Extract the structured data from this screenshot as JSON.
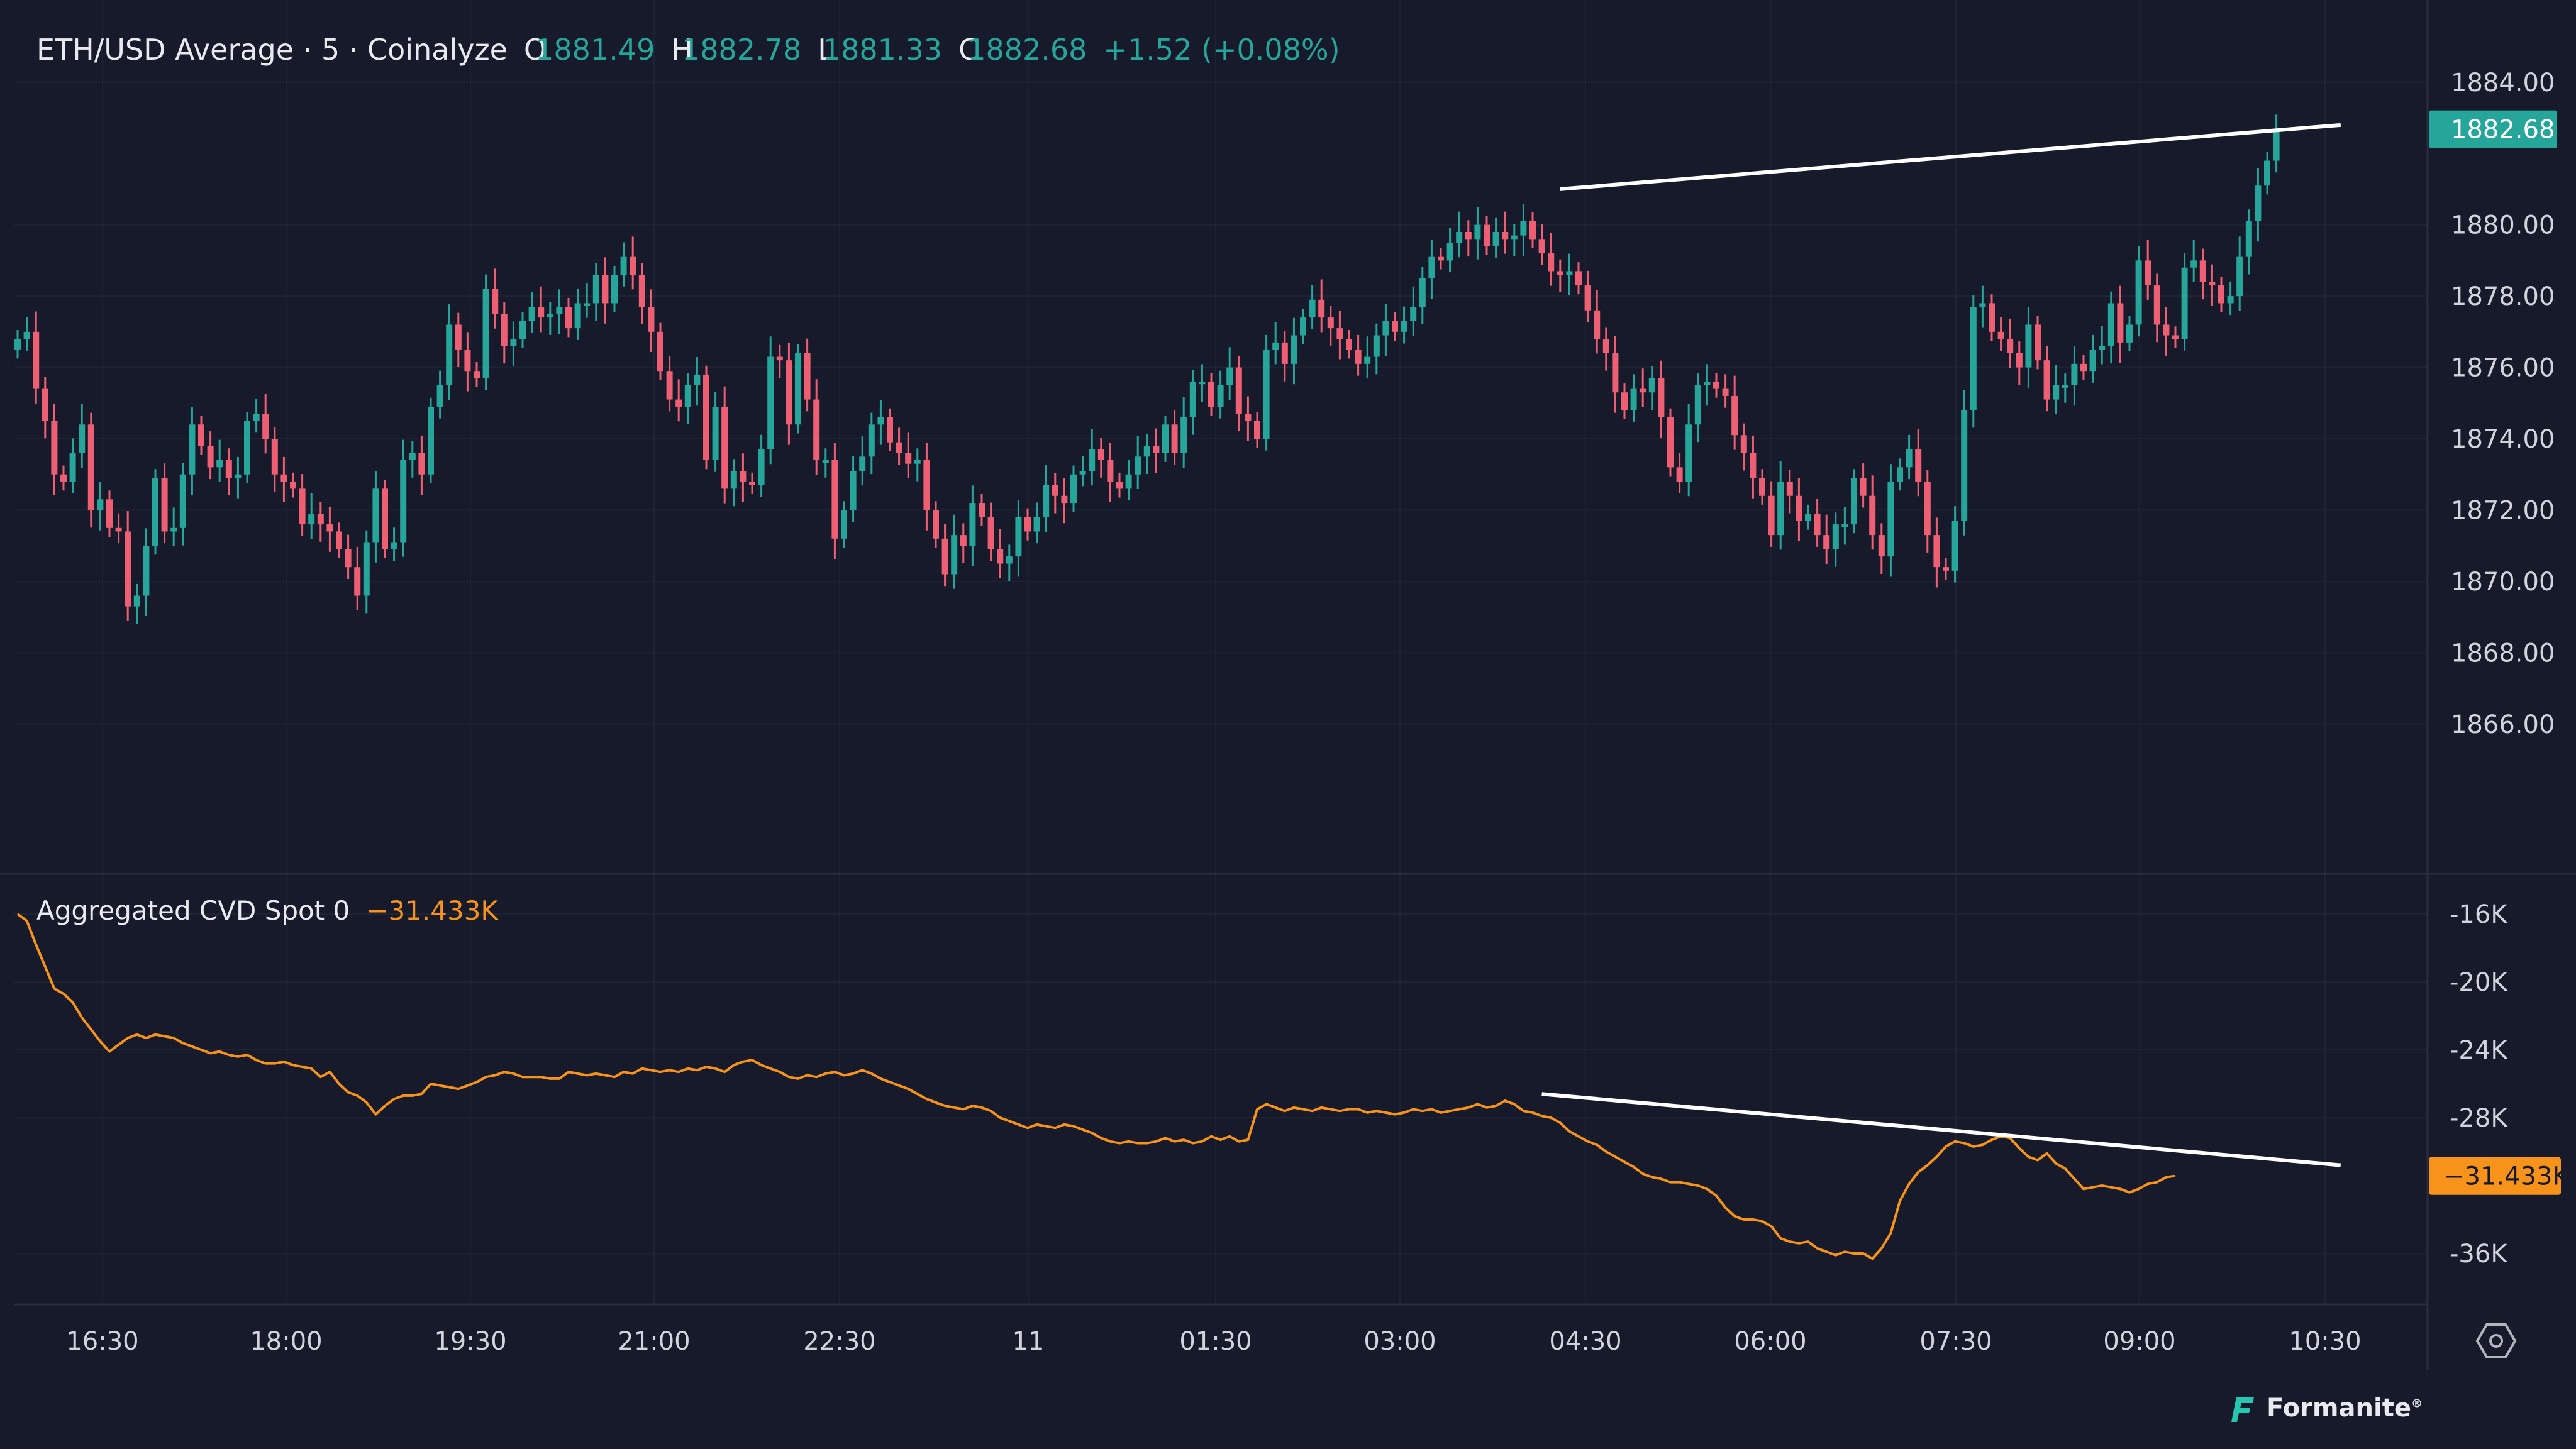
{
  "legend": {
    "symbol": "ETH/USD Average · 5 · Coinalyze",
    "o_label": "O",
    "o_value": "1881.49",
    "h_label": "H",
    "h_value": "1882.78",
    "l_label": "L",
    "l_value": "1881.33",
    "c_label": "C",
    "c_value": "1882.68",
    "change": "+1.52 (+0.08%)"
  },
  "cvd_legend": {
    "name": "Aggregated CVD Spot 0",
    "value": "−31.433K"
  },
  "watermark": {
    "brand": "Formanite",
    "mark": "®"
  },
  "colors": {
    "background": "#161a2a",
    "up": "#26a69a",
    "down": "#ef5f74",
    "cvd": "#f7931a",
    "trendline": "#ffffff",
    "grid": "#1f2435",
    "axis_text": "#d1d4dc"
  },
  "chart_data": [
    {
      "type": "candlestick",
      "series_name": "ETH/USD Average",
      "interval": "5",
      "x_tick_labels": [
        "16:30",
        "18:00",
        "19:30",
        "21:00",
        "22:30",
        "11",
        "01:30",
        "03:00",
        "04:30",
        "06:00",
        "07:30",
        "09:00",
        "10:30"
      ],
      "y_tick_labels": [
        "1884.00",
        "1880.00",
        "1878.00",
        "1876.00",
        "1874.00",
        "1872.00",
        "1870.00",
        "1868.00",
        "1866.00"
      ],
      "y_ticks": [
        1884,
        1880,
        1878,
        1876,
        1874,
        1872,
        1870,
        1868,
        1866
      ],
      "ylim": [
        1861.8,
        1885.6
      ],
      "last_price_label": "1882.68",
      "last_price": 1882.68,
      "closes": [
        1876.8,
        1877.0,
        1875.4,
        1874.5,
        1873.0,
        1872.8,
        1873.6,
        1874.4,
        1872.0,
        1872.3,
        1871.5,
        1871.4,
        1869.3,
        1869.6,
        1871.0,
        1872.9,
        1871.4,
        1871.5,
        1873.0,
        1874.4,
        1873.8,
        1873.2,
        1873.4,
        1872.9,
        1873.0,
        1874.5,
        1874.7,
        1874.0,
        1873.0,
        1872.8,
        1872.6,
        1871.6,
        1871.9,
        1871.6,
        1871.4,
        1870.9,
        1870.4,
        1869.6,
        1871.1,
        1872.6,
        1870.9,
        1871.1,
        1873.4,
        1873.6,
        1873.0,
        1874.9,
        1875.5,
        1877.2,
        1876.5,
        1875.9,
        1875.7,
        1878.2,
        1877.5,
        1876.6,
        1876.8,
        1877.3,
        1877.7,
        1877.4,
        1877.5,
        1877.7,
        1877.1,
        1877.8,
        1877.8,
        1878.6,
        1877.8,
        1878.6,
        1879.1,
        1878.6,
        1877.7,
        1877.0,
        1875.9,
        1875.1,
        1874.9,
        1875.5,
        1875.8,
        1873.4,
        1874.9,
        1872.6,
        1873.1,
        1872.8,
        1872.7,
        1873.7,
        1876.3,
        1876.2,
        1874.4,
        1876.4,
        1875.1,
        1873.4,
        1873.4,
        1871.2,
        1872.0,
        1873.1,
        1873.5,
        1874.4,
        1874.6,
        1873.9,
        1873.6,
        1873.3,
        1873.4,
        1872.0,
        1871.2,
        1870.2,
        1871.3,
        1871.0,
        1872.2,
        1871.8,
        1870.9,
        1870.5,
        1870.7,
        1871.8,
        1871.4,
        1871.8,
        1872.7,
        1872.4,
        1872.2,
        1873.0,
        1873.1,
        1873.7,
        1873.4,
        1872.8,
        1872.6,
        1873.0,
        1873.5,
        1873.8,
        1873.6,
        1874.4,
        1873.6,
        1874.6,
        1875.6,
        1875.6,
        1874.9,
        1875.5,
        1876.0,
        1874.7,
        1874.5,
        1874.0,
        1876.5,
        1876.7,
        1876.1,
        1876.9,
        1877.4,
        1877.9,
        1877.4,
        1877.1,
        1876.8,
        1876.5,
        1876.1,
        1876.3,
        1876.9,
        1877.3,
        1877.0,
        1877.3,
        1877.7,
        1878.5,
        1879.1,
        1879.0,
        1879.5,
        1879.8,
        1879.6,
        1880.0,
        1879.4,
        1879.8,
        1879.6,
        1879.7,
        1880.1,
        1879.6,
        1879.2,
        1878.7,
        1878.6,
        1878.7,
        1878.3,
        1877.6,
        1876.8,
        1876.4,
        1875.3,
        1874.8,
        1875.4,
        1875.3,
        1875.7,
        1874.6,
        1873.2,
        1872.8,
        1874.4,
        1875.5,
        1875.6,
        1875.4,
        1875.2,
        1874.1,
        1873.6,
        1872.9,
        1872.4,
        1871.3,
        1872.8,
        1872.4,
        1871.7,
        1871.9,
        1871.3,
        1870.9,
        1871.6,
        1871.6,
        1872.9,
        1872.4,
        1871.3,
        1870.7,
        1872.8,
        1873.2,
        1873.7,
        1872.8,
        1871.3,
        1870.4,
        1870.3,
        1871.7,
        1874.8,
        1877.7,
        1877.8,
        1877.0,
        1876.8,
        1876.4,
        1876.0,
        1877.2,
        1876.2,
        1875.1,
        1875.5,
        1875.5,
        1876.1,
        1875.9,
        1876.5,
        1876.6,
        1877.8,
        1876.7,
        1877.2,
        1879.0,
        1878.3,
        1877.2,
        1876.9,
        1876.8,
        1878.8,
        1879.0,
        1878.4,
        1878.3,
        1877.8,
        1878.0,
        1879.1,
        1880.1,
        1881.1,
        1881.8,
        1882.68
      ]
    },
    {
      "type": "line",
      "series_name": "Aggregated CVD Spot 0",
      "y_tick_labels": [
        "-16K",
        "-20K",
        "-24K",
        "-28K",
        "-36K"
      ],
      "y_ticks": [
        -16,
        -20,
        -24,
        -28,
        -36
      ],
      "ylim": [
        -39,
        -14
      ],
      "unit": "K",
      "last_value_label": "−31.433K",
      "last_value": -31.433,
      "values": [
        -16.0,
        -16.4,
        -17.8,
        -19.1,
        -20.4,
        -20.7,
        -21.2,
        -22.1,
        -22.8,
        -23.5,
        -24.1,
        -23.7,
        -23.3,
        -23.1,
        -23.3,
        -23.1,
        -23.2,
        -23.3,
        -23.6,
        -23.8,
        -24.0,
        -24.2,
        -24.1,
        -24.3,
        -24.4,
        -24.3,
        -24.6,
        -24.8,
        -24.8,
        -24.7,
        -24.9,
        -25.0,
        -25.1,
        -25.6,
        -25.3,
        -26.0,
        -26.5,
        -26.7,
        -27.1,
        -27.8,
        -27.3,
        -26.9,
        -26.7,
        -26.7,
        -26.6,
        -26.0,
        -26.1,
        -26.2,
        -26.3,
        -26.1,
        -25.9,
        -25.6,
        -25.5,
        -25.3,
        -25.4,
        -25.6,
        -25.6,
        -25.6,
        -25.7,
        -25.7,
        -25.3,
        -25.4,
        -25.5,
        -25.4,
        -25.5,
        -25.6,
        -25.3,
        -25.4,
        -25.1,
        -25.2,
        -25.3,
        -25.2,
        -25.3,
        -25.1,
        -25.2,
        -25.0,
        -25.1,
        -25.3,
        -24.9,
        -24.7,
        -24.6,
        -24.9,
        -25.1,
        -25.3,
        -25.6,
        -25.7,
        -25.5,
        -25.6,
        -25.4,
        -25.3,
        -25.5,
        -25.4,
        -25.2,
        -25.4,
        -25.7,
        -25.9,
        -26.1,
        -26.3,
        -26.6,
        -26.9,
        -27.1,
        -27.3,
        -27.4,
        -27.5,
        -27.3,
        -27.4,
        -27.6,
        -28.0,
        -28.2,
        -28.4,
        -28.6,
        -28.4,
        -28.5,
        -28.6,
        -28.4,
        -28.5,
        -28.7,
        -28.9,
        -29.2,
        -29.4,
        -29.5,
        -29.4,
        -29.5,
        -29.5,
        -29.4,
        -29.2,
        -29.4,
        -29.3,
        -29.5,
        -29.4,
        -29.1,
        -29.3,
        -29.1,
        -29.4,
        -29.3,
        -27.5,
        -27.2,
        -27.4,
        -27.6,
        -27.4,
        -27.5,
        -27.6,
        -27.4,
        -27.5,
        -27.6,
        -27.5,
        -27.5,
        -27.7,
        -27.6,
        -27.7,
        -27.8,
        -27.7,
        -27.5,
        -27.6,
        -27.5,
        -27.7,
        -27.6,
        -27.5,
        -27.4,
        -27.2,
        -27.4,
        -27.3,
        -27.0,
        -27.2,
        -27.6,
        -27.7,
        -27.9,
        -28.0,
        -28.3,
        -28.8,
        -29.1,
        -29.4,
        -29.6,
        -30.0,
        -30.3,
        -30.6,
        -30.9,
        -31.3,
        -31.5,
        -31.6,
        -31.8,
        -31.8,
        -31.9,
        -32.0,
        -32.2,
        -32.6,
        -33.3,
        -33.8,
        -34.0,
        -34.0,
        -34.1,
        -34.4,
        -35.1,
        -35.3,
        -35.4,
        -35.3,
        -35.7,
        -35.9,
        -36.1,
        -35.9,
        -36.0,
        -36.0,
        -36.3,
        -35.7,
        -34.8,
        -32.9,
        -31.9,
        -31.2,
        -30.8,
        -30.3,
        -29.7,
        -29.4,
        -29.5,
        -29.7,
        -29.6,
        -29.3,
        -29.1,
        -29.2,
        -29.8,
        -30.3,
        -30.5,
        -30.1,
        -30.7,
        -31.0,
        -31.6,
        -32.2,
        -32.1,
        -32.0,
        -32.1,
        -32.2,
        -32.4,
        -32.2,
        -31.9,
        -31.8,
        -31.5,
        -31.433
      ],
      "trendline": {
        "from_index": 166,
        "from_value": -26.6,
        "to_index": 253,
        "to_value": -30.8
      }
    }
  ],
  "price_trendline": {
    "from_index": 168,
    "from_value": 1881.0,
    "to_index": 253,
    "to_value": 1882.8
  }
}
